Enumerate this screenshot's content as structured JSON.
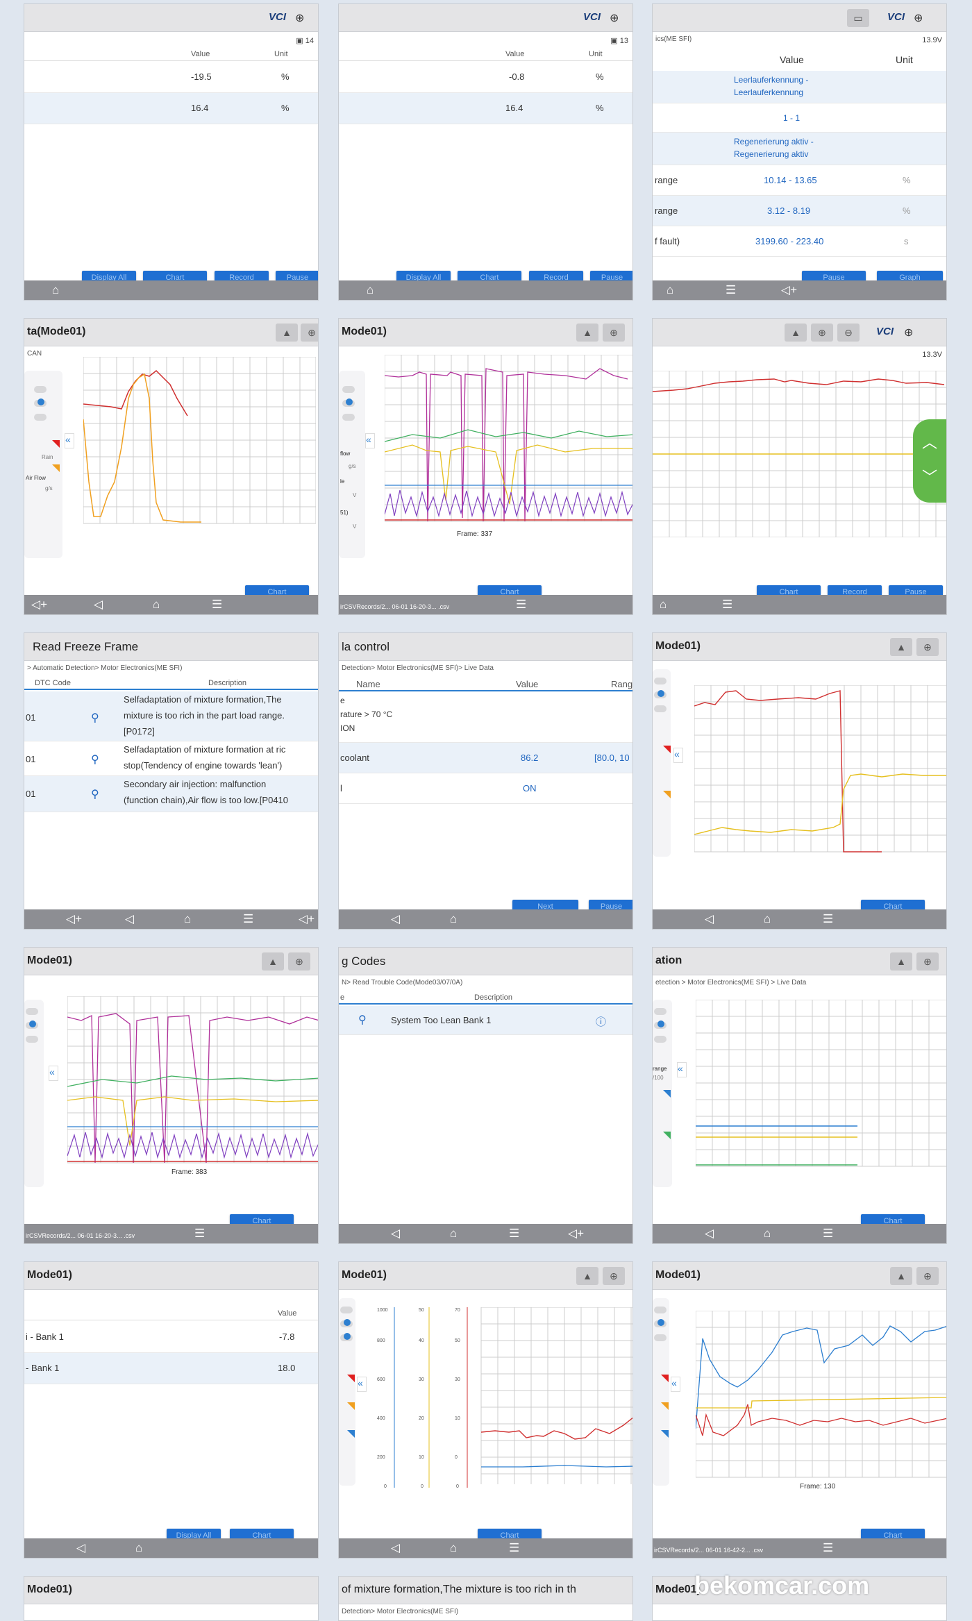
{
  "icons": {
    "vci": "VCI",
    "globe": "globe-icon",
    "home": "⌂",
    "back": "◁",
    "menu": "☰",
    "vol_down": "◁+",
    "chevron": "«",
    "up": "︿",
    "down": "﹀"
  },
  "colors": {
    "accent": "#1f6fd2",
    "nav": "#8d8e93",
    "green": "#62b84a"
  },
  "p1": {
    "col_value": "Value",
    "col_unit": "Unit",
    "rows": [
      {
        "value": "-19.5",
        "unit": "%"
      },
      {
        "value": "16.4",
        "unit": "%"
      }
    ],
    "buttons": [
      "Display All",
      "Chart",
      "Record",
      "Pause"
    ],
    "vin": "14"
  },
  "p2": {
    "col_value": "Value",
    "col_unit": "Unit",
    "rows": [
      {
        "value": "-0.8",
        "unit": "%"
      },
      {
        "value": "16.4",
        "unit": "%"
      }
    ],
    "buttons": [
      "Display All",
      "Chart",
      "Record",
      "Pause"
    ],
    "vin": "13"
  },
  "p3": {
    "sub": "ics(ME SFI)",
    "volt": "13.9V",
    "col_value": "Value",
    "col_unit": "Unit",
    "text_rows": [
      [
        "Leerlauferkennung -",
        "Leerlauferkennung"
      ],
      [
        "1 - 1"
      ],
      [
        "Regenerierung aktiv -",
        "Regenerierung aktiv"
      ]
    ],
    "rows": [
      {
        "name": "range",
        "value": "10.14 - 13.65",
        "unit": "%"
      },
      {
        "name": "range",
        "value": "3.12 - 8.19",
        "unit": "%"
      },
      {
        "name": "f fault)",
        "value": "3199.60 - 223.40",
        "unit": "s"
      }
    ],
    "buttons": [
      "Pause",
      "Graph"
    ]
  },
  "p4": {
    "title": "ta(Mode01)",
    "sub": "CAN",
    "labels": [
      "Rain",
      "Air Flow",
      "g/s"
    ],
    "buttons": [
      "Chart"
    ]
  },
  "p5": {
    "title": "Mode01)",
    "labels": [
      "flow",
      "g/s",
      "le",
      "V",
      "51)",
      "V"
    ],
    "frame": "Frame: 337",
    "file": "irCSVRecords/2... 06-01 16-20-3... .csv",
    "buttons": [
      "Chart"
    ]
  },
  "p6": {
    "volt": "13.3V",
    "buttons": [
      "Chart",
      "Record",
      "Pause"
    ]
  },
  "p7": {
    "title": "Read Freeze Frame",
    "sub": "> Automatic Detection> Motor Electronics(ME SFI)",
    "col_code": "DTC Code",
    "col_desc": "Description",
    "rows": [
      {
        "code": "01",
        "desc": [
          "Selfadaptation of mixture formation,The",
          "mixture is too rich in the part load range.",
          "[P0172]"
        ]
      },
      {
        "code": "01",
        "desc": [
          "Selfadaptation of mixture formation at ric",
          "stop(Tendency of engine towards 'lean')"
        ]
      },
      {
        "code": "01",
        "desc": [
          "Secondary air injection: malfunction",
          "(function chain),Air flow is too low.[P0410"
        ]
      }
    ]
  },
  "p8": {
    "title": "la control",
    "sub": "Detection> Motor Electronics(ME SFI)> Live Data",
    "col_name": "Name",
    "col_value": "Value",
    "col_range": "Rang",
    "rows": [
      {
        "name": [
          "e",
          "rature > 70 °C",
          "ION"
        ],
        "value": "",
        "range": ""
      },
      {
        "name": [
          "coolant"
        ],
        "value": "86.2",
        "range": "[80.0, 10"
      },
      {
        "name": [
          "l"
        ],
        "value": "ON",
        "range": ""
      }
    ],
    "buttons": [
      "Next",
      "Pause"
    ]
  },
  "p9": {
    "title": "Mode01)",
    "buttons": [
      "Chart"
    ]
  },
  "p10": {
    "title": "Mode01)",
    "frame": "Frame: 383",
    "file": "irCSVRecords/2... 06-01 16-20-3... .csv",
    "buttons": [
      "Chart"
    ]
  },
  "p11": {
    "title": "g Codes",
    "sub": "N> Read Trouble Code(Mode03/07/0A)",
    "col_desc": "Description",
    "prefix": "e",
    "row": "System Too Lean Bank 1"
  },
  "p12": {
    "title": "ation",
    "sub": "etection > Motor Electronics(ME SFI) > Live Data",
    "labels": [
      "range",
      "/100"
    ],
    "buttons": [
      "Chart"
    ]
  },
  "p13": {
    "title": "Mode01)",
    "col_value": "Value",
    "rows": [
      {
        "name": "i - Bank 1",
        "value": "-7.8"
      },
      {
        "name": "- Bank 1",
        "value": "18.0"
      }
    ],
    "buttons": [
      "Display All",
      "Chart"
    ]
  },
  "p14": {
    "title": "Mode01)",
    "axis1": [
      "1000",
      "800",
      "600",
      "400",
      "200",
      "0"
    ],
    "axis2": [
      "50",
      "40",
      "30",
      "20",
      "10",
      "0"
    ],
    "axis3": [
      "70",
      "50",
      "30",
      "10",
      "0",
      "0"
    ],
    "buttons": [
      "Chart"
    ]
  },
  "p15": {
    "title": "Mode01)",
    "frame": "Frame: 130",
    "file": "irCSVRecords/2... 06-01 16-42-2... .csv",
    "buttons": [
      "Chart"
    ]
  },
  "p16": {
    "title": "Mode01)"
  },
  "p17": {
    "title": "of mixture formation,The mixture is too rich in th",
    "sub": "Detection> Motor Electronics(ME SFI)"
  },
  "p18": {
    "title": "Mode01)"
  },
  "watermark": "bekomcar.com"
}
